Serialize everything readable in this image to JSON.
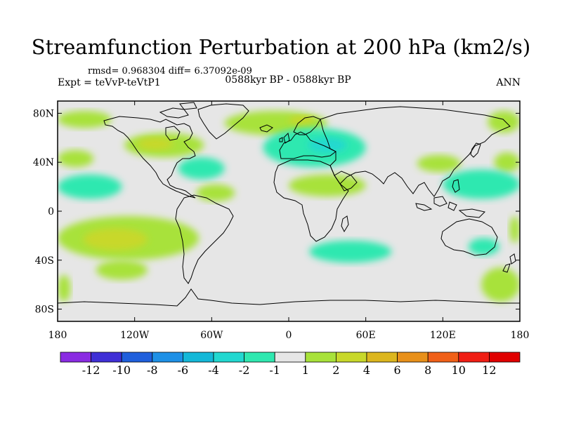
{
  "chart_data": {
    "type": "heatmap",
    "title": "Streamfunction Perturbation at 200 hPa (km2/s)",
    "stats_text": "rmsd= 0.968304 diff= 6.37092e-09",
    "left_label": "Expt = teVvP-teVtP1",
    "center_label": "0588kyr BP - 0588kyr BP",
    "right_label": "ANN",
    "projection": "cylindrical-equidistant",
    "xlim": [
      -180,
      180
    ],
    "ylim": [
      -90,
      90
    ],
    "x_ticks": [
      {
        "value": -180,
        "label": "180"
      },
      {
        "value": -120,
        "label": "120W"
      },
      {
        "value": -60,
        "label": "60W"
      },
      {
        "value": 0,
        "label": "0"
      },
      {
        "value": 60,
        "label": "60E"
      },
      {
        "value": 120,
        "label": "120E"
      },
      {
        "value": 180,
        "label": "180"
      }
    ],
    "y_ticks": [
      {
        "value": 80,
        "label": "80N"
      },
      {
        "value": 40,
        "label": "40N"
      },
      {
        "value": 0,
        "label": "0"
      },
      {
        "value": -40,
        "label": "40S"
      },
      {
        "value": -80,
        "label": "80S"
      }
    ],
    "colorbar": {
      "boundaries": [
        "-12",
        "-10",
        "-8",
        "-6",
        "-4",
        "-2",
        "-1",
        "1",
        "2",
        "4",
        "6",
        "8",
        "10",
        "12"
      ],
      "colors": [
        "#8a2be2",
        "#3f2fd6",
        "#1f5fdc",
        "#1e90e6",
        "#14b8d8",
        "#22d8d0",
        "#2fe8b0",
        "#e6e6e6",
        "#a8e23a",
        "#c8d82a",
        "#dcb61e",
        "#e8901a",
        "#f06018",
        "#f01e14",
        "#e00000"
      ]
    },
    "field_features": [
      {
        "sign": "positive",
        "level": 2,
        "lon": [
          -180,
          -138
        ],
        "lat": [
          68,
          82
        ]
      },
      {
        "sign": "positive",
        "level": 2,
        "lon": [
          -128,
          -66
        ],
        "lat": [
          44,
          64
        ]
      },
      {
        "sign": "positive",
        "level": 4,
        "lon": [
          -118,
          -90
        ],
        "lat": [
          50,
          60
        ]
      },
      {
        "sign": "positive",
        "level": 2,
        "lon": [
          -50,
          30
        ],
        "lat": [
          62,
          82
        ]
      },
      {
        "sign": "positive",
        "level": 4,
        "lon": [
          0,
          20
        ],
        "lat": [
          70,
          78
        ]
      },
      {
        "sign": "negative",
        "level": -2,
        "lon": [
          -20,
          60
        ],
        "lat": [
          36,
          68
        ]
      },
      {
        "sign": "negative",
        "level": -4,
        "lon": [
          15,
          45
        ],
        "lat": [
          48,
          60
        ]
      },
      {
        "sign": "negative",
        "level": -2,
        "lon": [
          -86,
          -50
        ],
        "lat": [
          26,
          44
        ]
      },
      {
        "sign": "positive",
        "level": 2,
        "lon": [
          -180,
          -152
        ],
        "lat": [
          36,
          50
        ]
      },
      {
        "sign": "negative",
        "level": -2,
        "lon": [
          -180,
          -130
        ],
        "lat": [
          10,
          30
        ]
      },
      {
        "sign": "positive",
        "level": 2,
        "lon": [
          -72,
          -42
        ],
        "lat": [
          8,
          22
        ]
      },
      {
        "sign": "positive",
        "level": 2,
        "lon": [
          0,
          60
        ],
        "lat": [
          12,
          30
        ]
      },
      {
        "sign": "positive",
        "level": 2,
        "lon": [
          100,
          134
        ],
        "lat": [
          32,
          46
        ]
      },
      {
        "sign": "positive",
        "level": 2,
        "lon": [
          155,
          180
        ],
        "lat": [
          64,
          82
        ]
      },
      {
        "sign": "positive",
        "level": 2,
        "lon": [
          160,
          180
        ],
        "lat": [
          32,
          48
        ]
      },
      {
        "sign": "negative",
        "level": -2,
        "lon": [
          120,
          180
        ],
        "lat": [
          10,
          34
        ]
      },
      {
        "sign": "positive",
        "level": 2,
        "lon": [
          -180,
          -70
        ],
        "lat": [
          -40,
          -4
        ]
      },
      {
        "sign": "positive",
        "level": 4,
        "lon": [
          -160,
          -110
        ],
        "lat": [
          -32,
          -14
        ]
      },
      {
        "sign": "negative",
        "level": -2,
        "lon": [
          16,
          80
        ],
        "lat": [
          -42,
          -24
        ]
      },
      {
        "sign": "positive",
        "level": 2,
        "lon": [
          172,
          180
        ],
        "lat": [
          -26,
          -4
        ]
      },
      {
        "sign": "negative",
        "level": -2,
        "lon": [
          140,
          164
        ],
        "lat": [
          -36,
          -22
        ]
      },
      {
        "sign": "positive",
        "level": 2,
        "lon": [
          -150,
          -110
        ],
        "lat": [
          -56,
          -40
        ]
      },
      {
        "sign": "positive",
        "level": 2,
        "lon": [
          -180,
          -170
        ],
        "lat": [
          -74,
          -52
        ]
      },
      {
        "sign": "positive",
        "level": 2,
        "lon": [
          150,
          180
        ],
        "lat": [
          -74,
          -46
        ]
      }
    ]
  }
}
